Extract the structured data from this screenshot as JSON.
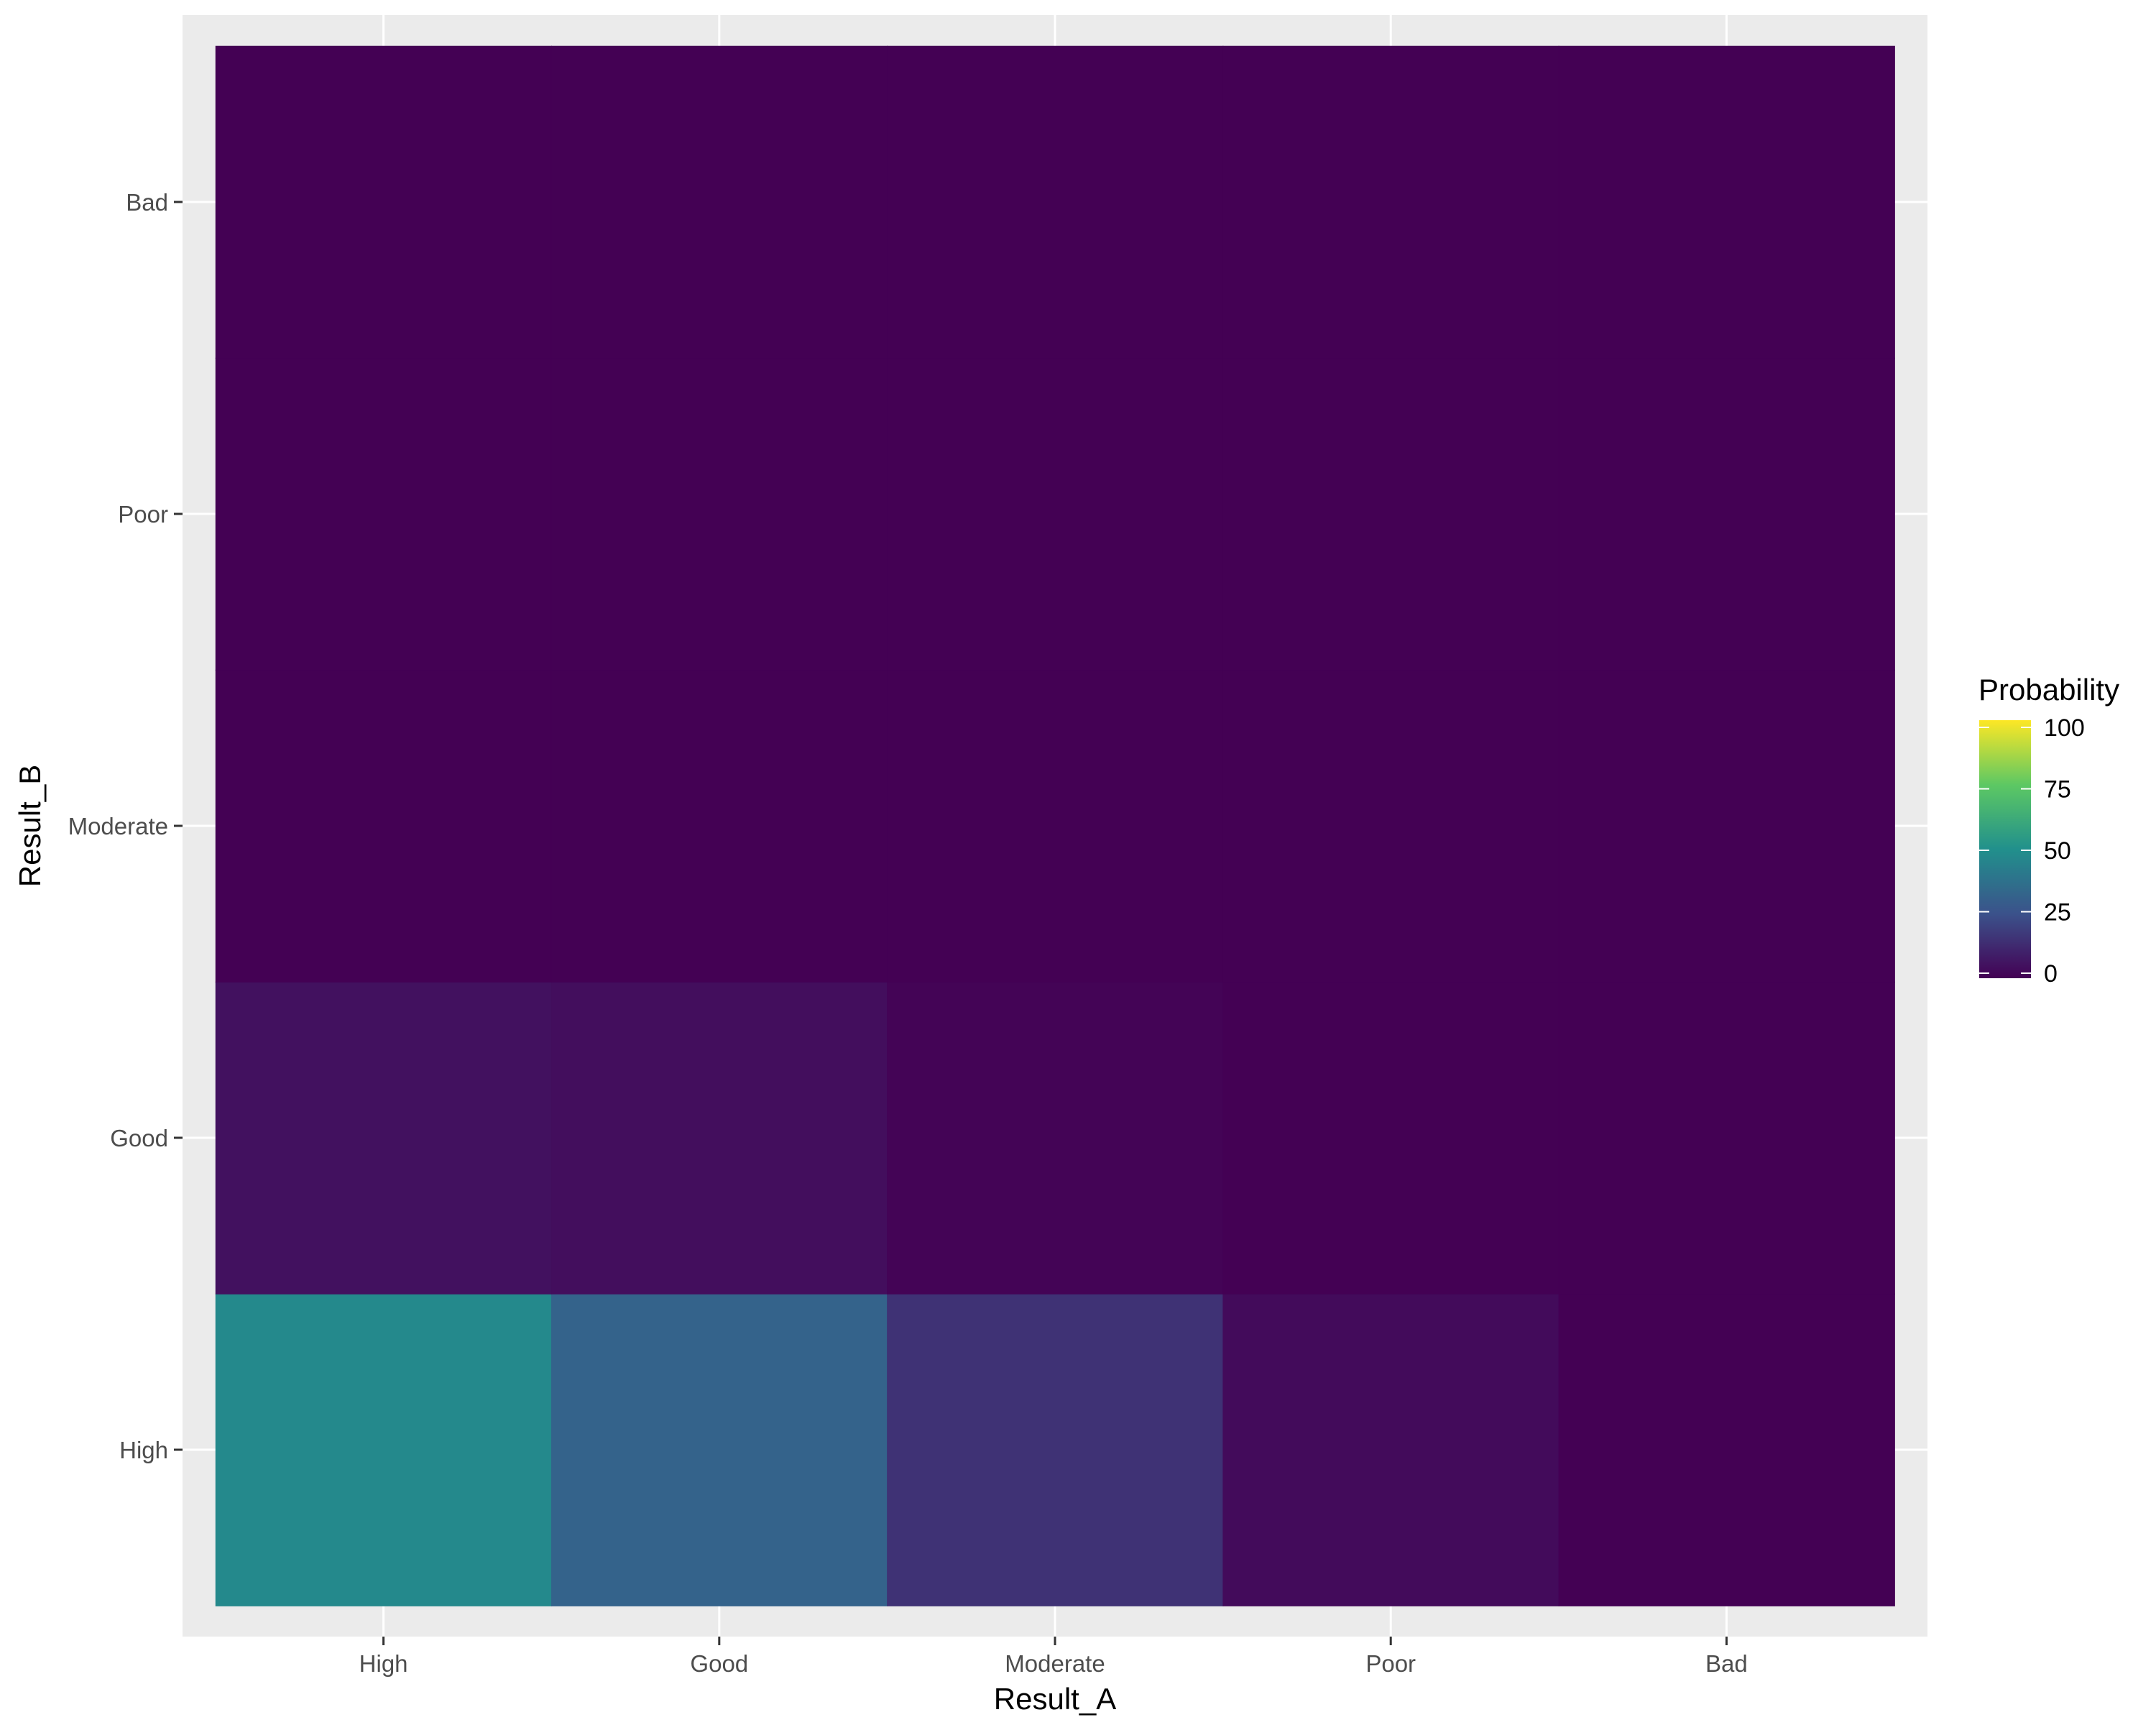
{
  "chart_data": {
    "type": "heatmap",
    "title": "",
    "xlabel": "Result_A",
    "ylabel": "Result_B",
    "x_categories": [
      "High",
      "Good",
      "Moderate",
      "Poor",
      "Bad"
    ],
    "y_categories": [
      "High",
      "Good",
      "Moderate",
      "Poor",
      "Bad"
    ],
    "values": [
      [
        47,
        32,
        15,
        3,
        0
      ],
      [
        5,
        4,
        1,
        0,
        0
      ],
      [
        0,
        0,
        0,
        0,
        0
      ],
      [
        0,
        0,
        0,
        0,
        0
      ],
      [
        0,
        0,
        0,
        0,
        0
      ]
    ],
    "values_orientation": "rows follow y_categories, columns follow x_categories",
    "colorbar": {
      "title": "Probability",
      "range": [
        0,
        100
      ],
      "ticks": [
        "0",
        "25",
        "50",
        "75",
        "100"
      ],
      "colormap": [
        "#440154",
        "#3B528B",
        "#21908C",
        "#5DC863",
        "#FDE725"
      ]
    },
    "panel_background": "#EBEBEB",
    "grid": true,
    "legend_position": "right"
  }
}
